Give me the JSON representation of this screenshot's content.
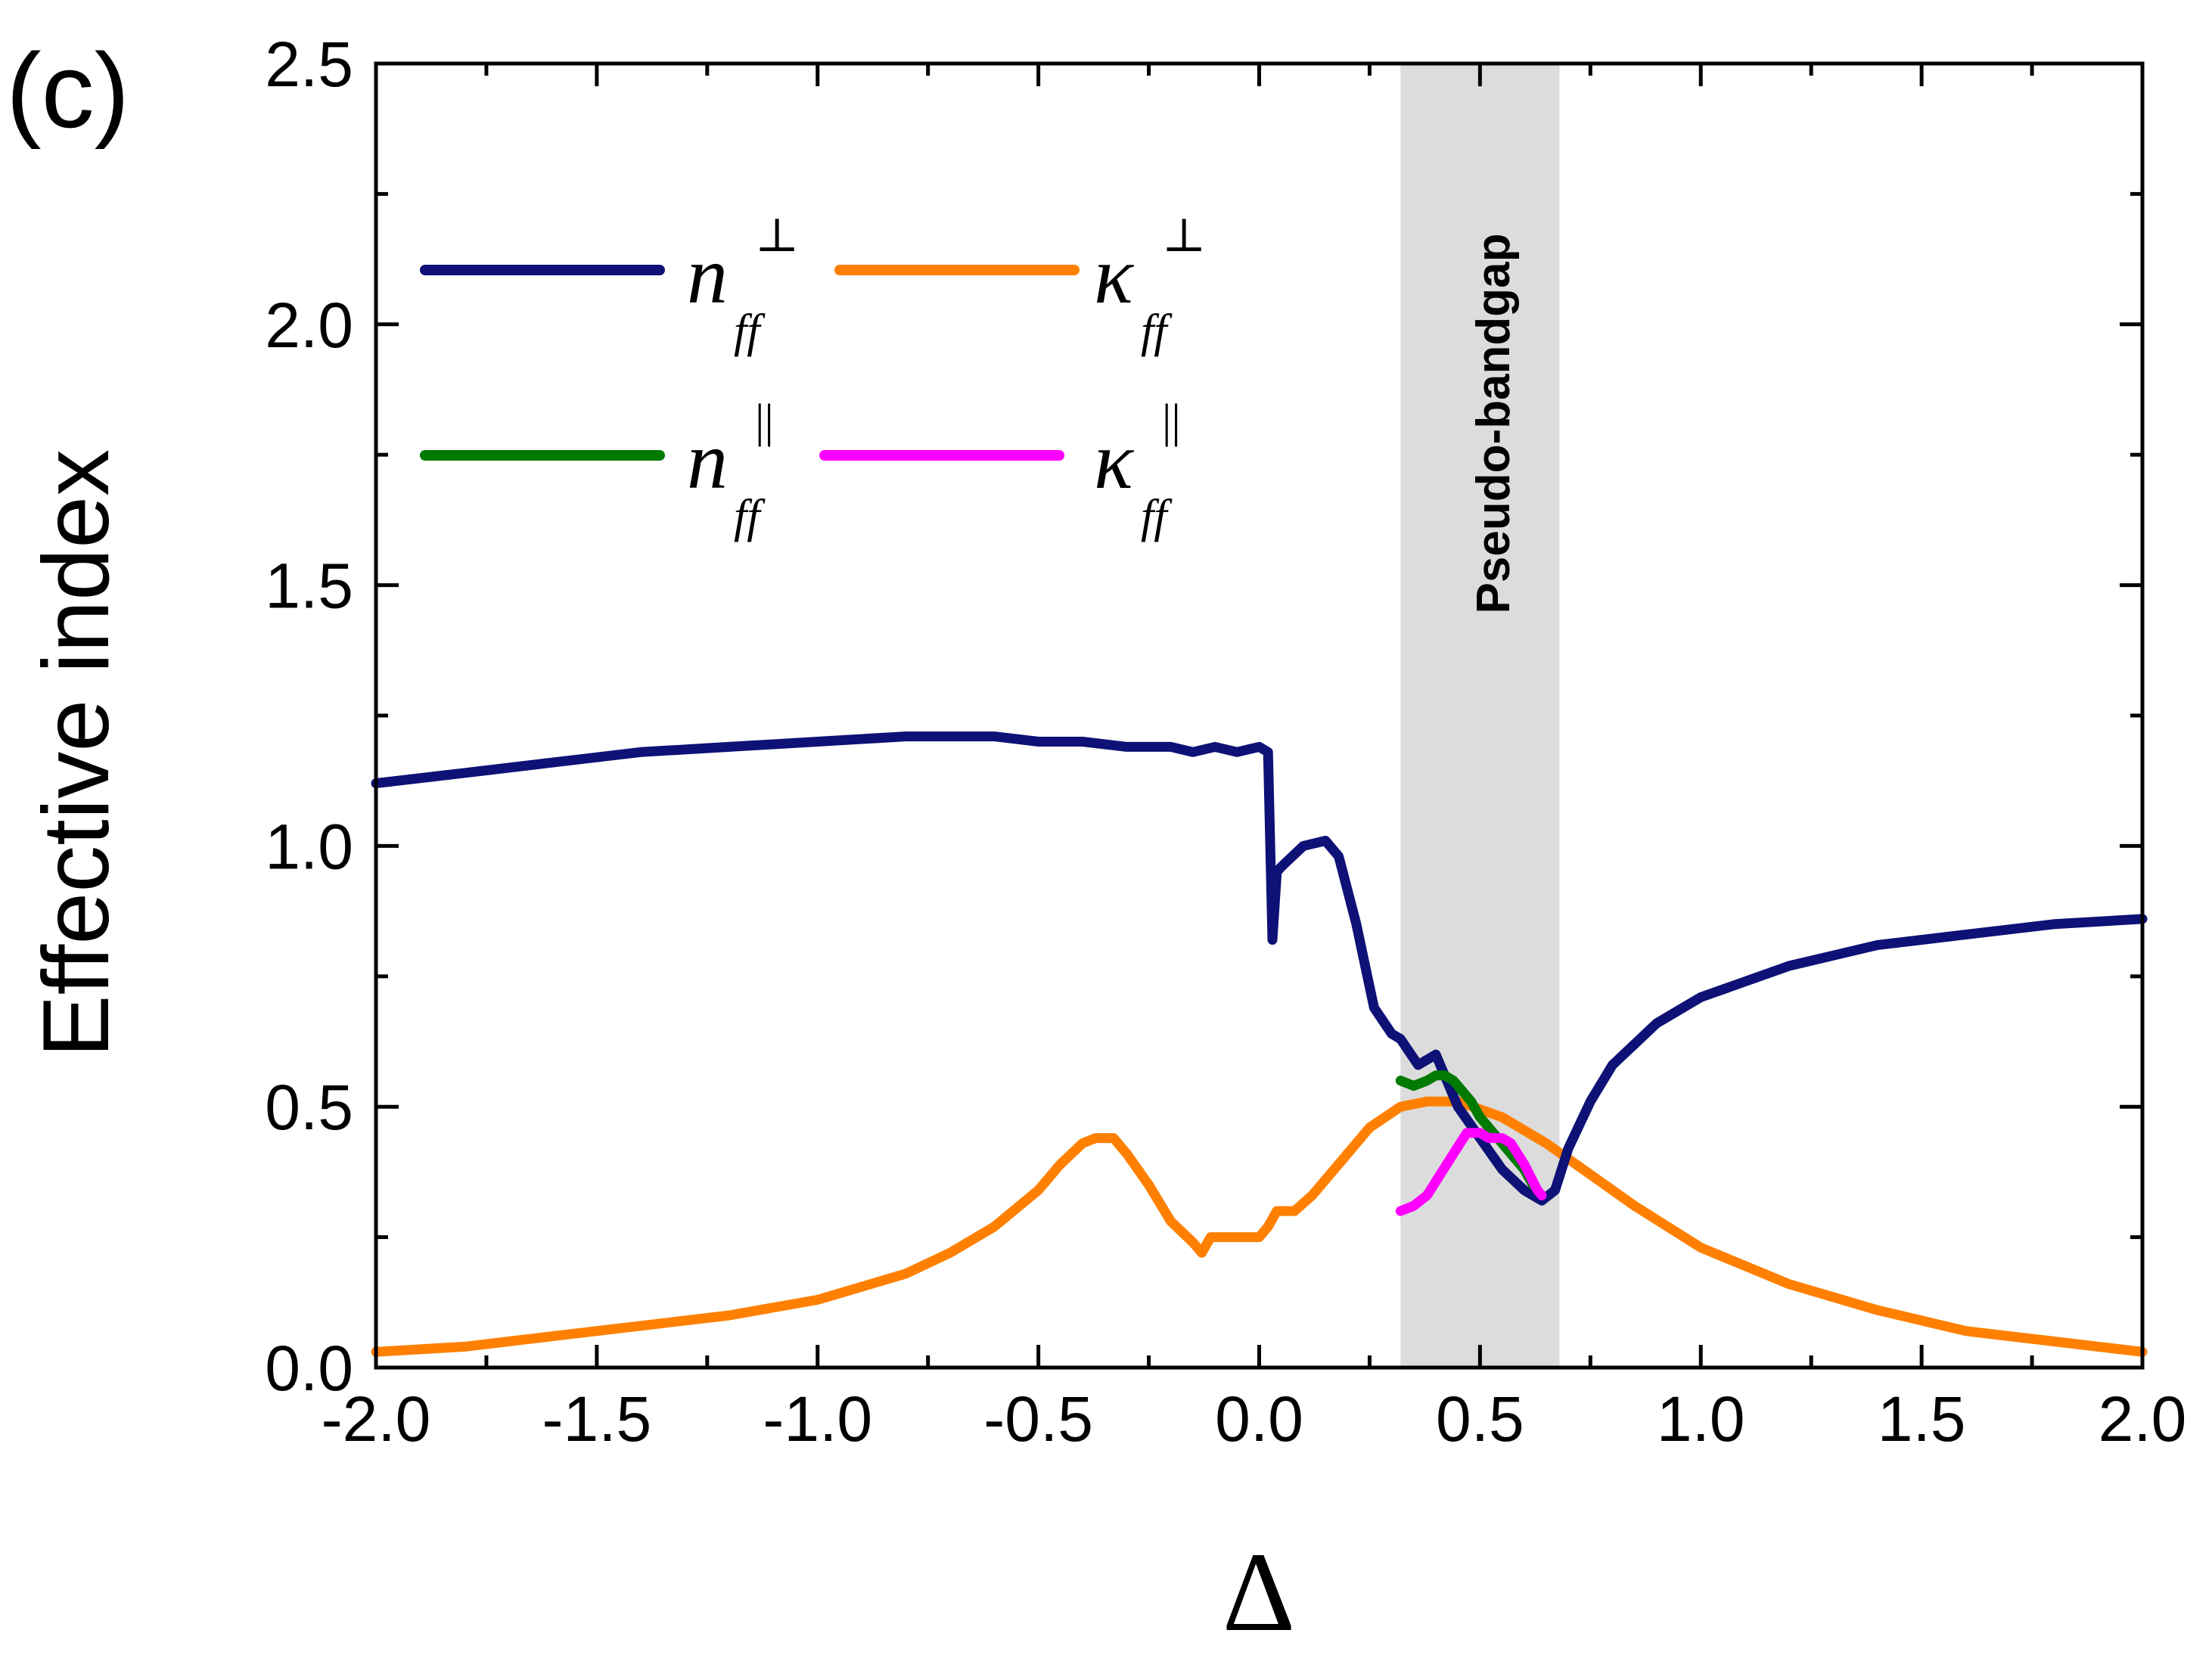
{
  "chart_data": {
    "type": "line",
    "panel_label": "(c)",
    "xlabel": "Δ",
    "ylabel": "Effective index",
    "xlim": [
      -2.0,
      2.0
    ],
    "ylim": [
      0.0,
      2.5
    ],
    "xticks": [
      -2.0,
      -1.5,
      -1.0,
      -0.5,
      0.0,
      0.5,
      1.0,
      1.5,
      2.0
    ],
    "yticks": [
      0.0,
      0.5,
      1.0,
      1.5,
      2.0,
      2.5
    ],
    "xtick_labels": [
      "-2.0",
      "-1.5",
      "-1.0",
      "-0.5",
      "0.0",
      "0.5",
      "1.0",
      "1.5",
      "2.0"
    ],
    "ytick_labels": [
      "0.0",
      "0.5",
      "1.0",
      "1.5",
      "2.0",
      "2.5"
    ],
    "grid": false,
    "legend_position": "upper-left",
    "shaded_band": {
      "x_range": [
        0.32,
        0.68
      ],
      "label": "Pseudo-bandgap",
      "color": "#dcdcdc"
    },
    "series": [
      {
        "name": "n_ff ⊥",
        "legend_symbol": "n",
        "legend_sub": "ff",
        "legend_sup": "⊥",
        "color": "#0e1175",
        "x": [
          -2.0,
          -1.8,
          -1.6,
          -1.4,
          -1.2,
          -1.0,
          -0.8,
          -0.7,
          -0.6,
          -0.5,
          -0.4,
          -0.3,
          -0.2,
          -0.15,
          -0.1,
          -0.05,
          0.0,
          0.02,
          0.03,
          0.04,
          0.05,
          0.1,
          0.15,
          0.18,
          0.22,
          0.26,
          0.3,
          0.32,
          0.36,
          0.4,
          0.42,
          0.45,
          0.5,
          0.55,
          0.6,
          0.64,
          0.67,
          0.7,
          0.75,
          0.8,
          0.9,
          1.0,
          1.2,
          1.4,
          1.6,
          1.8,
          2.0
        ],
        "y": [
          1.12,
          1.14,
          1.16,
          1.18,
          1.19,
          1.2,
          1.21,
          1.21,
          1.21,
          1.2,
          1.2,
          1.19,
          1.19,
          1.18,
          1.19,
          1.18,
          1.19,
          1.18,
          0.82,
          0.95,
          0.96,
          1.0,
          1.01,
          0.98,
          0.85,
          0.69,
          0.64,
          0.63,
          0.58,
          0.6,
          0.56,
          0.5,
          0.44,
          0.38,
          0.34,
          0.32,
          0.34,
          0.42,
          0.51,
          0.58,
          0.66,
          0.71,
          0.77,
          0.81,
          0.83,
          0.85,
          0.86
        ]
      },
      {
        "name": "κ_ff ⊥",
        "legend_symbol": "κ",
        "legend_sub": "ff",
        "legend_sup": "⊥",
        "color": "#ff8000",
        "x": [
          -2.0,
          -1.8,
          -1.6,
          -1.4,
          -1.2,
          -1.0,
          -0.8,
          -0.7,
          -0.6,
          -0.5,
          -0.45,
          -0.4,
          -0.37,
          -0.33,
          -0.3,
          -0.25,
          -0.2,
          -0.15,
          -0.13,
          -0.11,
          -0.1,
          -0.05,
          0.0,
          0.02,
          0.04,
          0.05,
          0.08,
          0.12,
          0.18,
          0.25,
          0.32,
          0.38,
          0.45,
          0.55,
          0.65,
          0.75,
          0.85,
          1.0,
          1.2,
          1.4,
          1.6,
          1.8,
          2.0
        ],
        "y": [
          0.03,
          0.04,
          0.06,
          0.08,
          0.1,
          0.13,
          0.18,
          0.22,
          0.27,
          0.34,
          0.39,
          0.43,
          0.44,
          0.44,
          0.41,
          0.35,
          0.28,
          0.24,
          0.22,
          0.25,
          0.25,
          0.25,
          0.25,
          0.27,
          0.3,
          0.3,
          0.3,
          0.33,
          0.39,
          0.46,
          0.5,
          0.51,
          0.51,
          0.48,
          0.43,
          0.37,
          0.31,
          0.23,
          0.16,
          0.11,
          0.07,
          0.05,
          0.03
        ]
      },
      {
        "name": "n_ff ||",
        "legend_symbol": "n",
        "legend_sub": "ff",
        "legend_sup": "||",
        "color": "#007a00",
        "x": [
          0.32,
          0.35,
          0.38,
          0.4,
          0.42,
          0.44,
          0.46,
          0.48,
          0.5,
          0.53,
          0.56,
          0.6,
          0.62
        ],
        "y": [
          0.55,
          0.54,
          0.55,
          0.56,
          0.56,
          0.55,
          0.53,
          0.51,
          0.48,
          0.45,
          0.42,
          0.38,
          0.35
        ]
      },
      {
        "name": "κ_ff ||",
        "legend_symbol": "κ",
        "legend_sub": "ff",
        "legend_sup": "||",
        "color": "#ff00ff",
        "x": [
          0.32,
          0.35,
          0.38,
          0.41,
          0.44,
          0.47,
          0.5,
          0.52,
          0.55,
          0.57,
          0.6,
          0.63,
          0.64
        ],
        "y": [
          0.3,
          0.31,
          0.33,
          0.37,
          0.41,
          0.45,
          0.45,
          0.44,
          0.44,
          0.43,
          0.39,
          0.34,
          0.33
        ]
      }
    ]
  }
}
